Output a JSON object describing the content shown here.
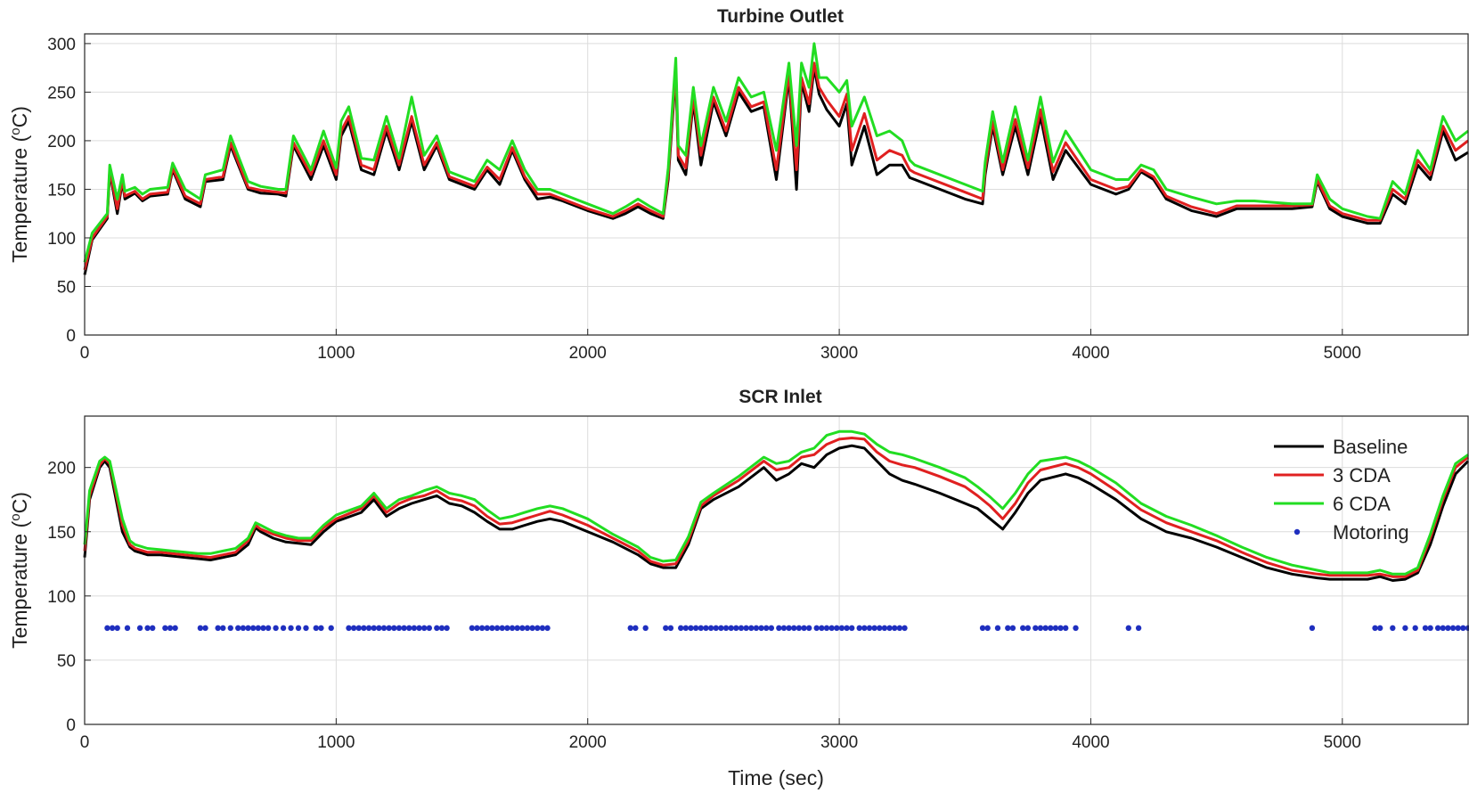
{
  "chart_data": [
    {
      "type": "line",
      "title": "Turbine Outlet",
      "xlabel": "",
      "ylabel": "Temperature (°C)",
      "ylabel_parts": {
        "pre": "Temperature (",
        "sup": "o",
        "post": "C)"
      },
      "xlim": [
        0,
        5500
      ],
      "ylim": [
        0,
        310
      ],
      "xticks": [
        "0",
        "1000",
        "2000",
        "3000",
        "4000",
        "5000"
      ],
      "yticks": [
        "0",
        "50",
        "100",
        "150",
        "200",
        "250",
        "300"
      ],
      "grid": true,
      "x": [
        0,
        30,
        90,
        100,
        130,
        150,
        160,
        200,
        230,
        260,
        330,
        350,
        400,
        460,
        480,
        550,
        580,
        650,
        700,
        770,
        800,
        830,
        900,
        950,
        1000,
        1020,
        1050,
        1100,
        1150,
        1200,
        1250,
        1300,
        1350,
        1400,
        1450,
        1500,
        1550,
        1600,
        1650,
        1700,
        1750,
        1800,
        1850,
        1900,
        2000,
        2100,
        2150,
        2200,
        2250,
        2300,
        2320,
        2350,
        2360,
        2390,
        2420,
        2450,
        2500,
        2550,
        2600,
        2650,
        2700,
        2750,
        2800,
        2830,
        2850,
        2880,
        2900,
        2920,
        2950,
        3000,
        3030,
        3050,
        3100,
        3150,
        3200,
        3250,
        3280,
        3300,
        3500,
        3570,
        3580,
        3610,
        3650,
        3700,
        3750,
        3800,
        3850,
        3900,
        4000,
        4100,
        4150,
        4200,
        4250,
        4300,
        4400,
        4500,
        4580,
        4650,
        4800,
        4880,
        4900,
        4950,
        5000,
        5100,
        5150,
        5200,
        5250,
        5300,
        5350,
        5400,
        5450,
        5500
      ],
      "series": [
        {
          "name": "Baseline",
          "color": "#000000",
          "values": [
            62,
            98,
            120,
            168,
            125,
            158,
            140,
            146,
            138,
            143,
            145,
            170,
            140,
            132,
            158,
            160,
            195,
            150,
            146,
            145,
            143,
            195,
            160,
            195,
            160,
            205,
            220,
            170,
            165,
            210,
            170,
            220,
            170,
            195,
            160,
            155,
            150,
            170,
            155,
            190,
            160,
            140,
            142,
            138,
            128,
            120,
            125,
            132,
            125,
            120,
            160,
            270,
            180,
            165,
            240,
            175,
            240,
            205,
            250,
            230,
            235,
            160,
            265,
            150,
            260,
            230,
            275,
            248,
            232,
            215,
            238,
            175,
            215,
            165,
            175,
            175,
            162,
            160,
            140,
            135,
            165,
            215,
            165,
            215,
            165,
            225,
            160,
            190,
            155,
            145,
            150,
            168,
            160,
            140,
            128,
            122,
            130,
            130,
            130,
            132,
            158,
            130,
            122,
            115,
            115,
            145,
            135,
            175,
            160,
            210,
            180,
            188
          ]
        },
        {
          "name": "3 CDA",
          "color": "#e02020",
          "values": [
            67,
            100,
            122,
            170,
            130,
            160,
            143,
            148,
            140,
            145,
            147,
            172,
            143,
            135,
            160,
            163,
            198,
            152,
            149,
            147,
            146,
            198,
            165,
            200,
            165,
            210,
            225,
            175,
            170,
            215,
            175,
            225,
            175,
            198,
            163,
            158,
            153,
            173,
            160,
            193,
            163,
            145,
            145,
            140,
            130,
            122,
            128,
            135,
            128,
            122,
            165,
            275,
            185,
            172,
            245,
            185,
            245,
            210,
            255,
            235,
            240,
            170,
            270,
            170,
            265,
            238,
            280,
            255,
            242,
            225,
            248,
            190,
            228,
            180,
            190,
            185,
            170,
            167,
            147,
            140,
            170,
            220,
            170,
            222,
            172,
            232,
            168,
            198,
            160,
            150,
            153,
            170,
            163,
            143,
            132,
            125,
            133,
            133,
            133,
            134,
            160,
            133,
            125,
            118,
            118,
            150,
            140,
            180,
            165,
            215,
            190,
            200
          ]
        },
        {
          "name": "6 CDA",
          "color": "#22dd22",
          "values": [
            75,
            105,
            125,
            175,
            140,
            165,
            148,
            152,
            145,
            150,
            152,
            177,
            150,
            140,
            165,
            170,
            205,
            158,
            153,
            150,
            150,
            205,
            170,
            210,
            172,
            220,
            235,
            182,
            180,
            225,
            182,
            245,
            185,
            205,
            168,
            163,
            158,
            180,
            170,
            200,
            170,
            150,
            150,
            145,
            135,
            125,
            132,
            140,
            132,
            125,
            172,
            285,
            195,
            185,
            255,
            195,
            255,
            220,
            265,
            245,
            250,
            190,
            280,
            195,
            280,
            255,
            300,
            265,
            265,
            250,
            262,
            215,
            245,
            205,
            210,
            200,
            180,
            175,
            155,
            148,
            178,
            230,
            178,
            235,
            180,
            245,
            178,
            210,
            170,
            160,
            160,
            175,
            170,
            150,
            142,
            135,
            138,
            138,
            135,
            135,
            165,
            140,
            130,
            122,
            120,
            158,
            145,
            190,
            170,
            225,
            200,
            210
          ]
        }
      ]
    },
    {
      "type": "line",
      "title": "SCR Inlet",
      "xlabel": "Time (sec)",
      "ylabel": "Temperature (°C)",
      "ylabel_parts": {
        "pre": "Temperature (",
        "sup": "o",
        "post": "C)"
      },
      "xlim": [
        0,
        5500
      ],
      "ylim": [
        0,
        240
      ],
      "xticks": [
        "0",
        "1000",
        "2000",
        "3000",
        "4000",
        "5000"
      ],
      "yticks": [
        "0",
        "50",
        "100",
        "150",
        "200"
      ],
      "grid": true,
      "legend": "top-right",
      "x": [
        0,
        20,
        60,
        80,
        100,
        150,
        180,
        200,
        250,
        300,
        350,
        400,
        450,
        500,
        550,
        600,
        650,
        680,
        700,
        750,
        800,
        850,
        900,
        950,
        1000,
        1100,
        1150,
        1200,
        1250,
        1300,
        1350,
        1400,
        1450,
        1500,
        1550,
        1600,
        1650,
        1700,
        1750,
        1800,
        1850,
        1900,
        2000,
        2100,
        2200,
        2250,
        2300,
        2350,
        2400,
        2450,
        2500,
        2600,
        2700,
        2750,
        2800,
        2850,
        2900,
        2950,
        3000,
        3050,
        3100,
        3150,
        3200,
        3250,
        3300,
        3400,
        3500,
        3550,
        3600,
        3650,
        3700,
        3750,
        3800,
        3900,
        3950,
        4000,
        4100,
        4200,
        4300,
        4400,
        4500,
        4600,
        4700,
        4800,
        4900,
        4950,
        5000,
        5050,
        5100,
        5150,
        5200,
        5250,
        5300,
        5350,
        5400,
        5450,
        5500
      ],
      "series": [
        {
          "name": "Baseline",
          "color": "#000000",
          "values": [
            130,
            175,
            200,
            205,
            200,
            150,
            138,
            135,
            132,
            132,
            131,
            130,
            129,
            128,
            130,
            132,
            140,
            153,
            150,
            145,
            142,
            141,
            140,
            150,
            158,
            165,
            175,
            162,
            168,
            172,
            175,
            178,
            172,
            170,
            165,
            158,
            152,
            152,
            155,
            158,
            160,
            158,
            150,
            142,
            132,
            125,
            122,
            122,
            140,
            168,
            175,
            185,
            200,
            190,
            195,
            203,
            200,
            210,
            215,
            217,
            215,
            205,
            195,
            190,
            187,
            180,
            172,
            168,
            160,
            152,
            165,
            180,
            190,
            195,
            192,
            187,
            175,
            160,
            150,
            145,
            138,
            130,
            122,
            117,
            114,
            113,
            113,
            113,
            113,
            115,
            112,
            113,
            118,
            140,
            170,
            195,
            205
          ]
        },
        {
          "name": "3 CDA",
          "color": "#e02020",
          "values": [
            135,
            178,
            202,
            207,
            203,
            155,
            140,
            137,
            134,
            134,
            133,
            132,
            131,
            130,
            132,
            134,
            143,
            155,
            152,
            148,
            145,
            143,
            143,
            153,
            160,
            168,
            178,
            165,
            172,
            176,
            178,
            182,
            176,
            174,
            170,
            162,
            156,
            157,
            160,
            163,
            166,
            163,
            155,
            145,
            135,
            127,
            124,
            125,
            143,
            170,
            178,
            190,
            205,
            198,
            200,
            208,
            210,
            218,
            222,
            223,
            222,
            212,
            205,
            202,
            200,
            193,
            185,
            178,
            170,
            160,
            172,
            188,
            198,
            203,
            200,
            195,
            182,
            167,
            157,
            150,
            143,
            134,
            126,
            120,
            117,
            116,
            116,
            116,
            116,
            117,
            115,
            115,
            120,
            145,
            175,
            200,
            208
          ]
        },
        {
          "name": "6 CDA",
          "color": "#22dd22",
          "values": [
            140,
            182,
            205,
            208,
            205,
            160,
            143,
            140,
            137,
            136,
            135,
            134,
            133,
            133,
            135,
            137,
            145,
            157,
            155,
            150,
            147,
            145,
            145,
            155,
            163,
            170,
            180,
            168,
            175,
            178,
            182,
            185,
            180,
            178,
            175,
            167,
            160,
            162,
            165,
            168,
            170,
            168,
            160,
            148,
            138,
            130,
            127,
            128,
            146,
            173,
            180,
            193,
            208,
            203,
            205,
            212,
            215,
            225,
            228,
            228,
            226,
            218,
            212,
            210,
            207,
            200,
            192,
            185,
            177,
            168,
            180,
            195,
            205,
            208,
            205,
            200,
            188,
            172,
            162,
            155,
            147,
            138,
            130,
            124,
            120,
            118,
            118,
            118,
            118,
            120,
            117,
            117,
            122,
            148,
            178,
            203,
            210
          ]
        },
        {
          "name": "Motoring",
          "color": "#1f2fbf",
          "marker": "dot",
          "y": 75,
          "x_points": [
            90,
            110,
            130,
            170,
            220,
            250,
            270,
            320,
            340,
            360,
            460,
            480,
            530,
            550,
            580,
            610,
            630,
            650,
            670,
            690,
            710,
            730,
            760,
            790,
            820,
            850,
            880,
            920,
            940,
            980,
            1050,
            1070,
            1090,
            1110,
            1130,
            1150,
            1170,
            1190,
            1210,
            1230,
            1250,
            1270,
            1290,
            1310,
            1330,
            1350,
            1370,
            1400,
            1420,
            1440,
            1540,
            1560,
            1580,
            1600,
            1620,
            1640,
            1660,
            1680,
            1700,
            1720,
            1740,
            1760,
            1780,
            1800,
            1820,
            1840,
            2170,
            2190,
            2230,
            2310,
            2330,
            2370,
            2390,
            2410,
            2430,
            2450,
            2470,
            2490,
            2510,
            2530,
            2550,
            2570,
            2590,
            2610,
            2630,
            2650,
            2670,
            2690,
            2710,
            2730,
            2760,
            2780,
            2800,
            2820,
            2840,
            2860,
            2880,
            2910,
            2930,
            2950,
            2970,
            2990,
            3010,
            3030,
            3050,
            3080,
            3100,
            3120,
            3140,
            3160,
            3180,
            3200,
            3220,
            3240,
            3260,
            3570,
            3590,
            3630,
            3670,
            3690,
            3730,
            3750,
            3780,
            3800,
            3820,
            3840,
            3860,
            3880,
            3900,
            3940,
            4150,
            4190,
            4880,
            5130,
            5150,
            5200,
            5250,
            5290,
            5330,
            5350,
            5380,
            5400,
            5420,
            5440,
            5460,
            5480,
            5500
          ]
        }
      ]
    }
  ]
}
